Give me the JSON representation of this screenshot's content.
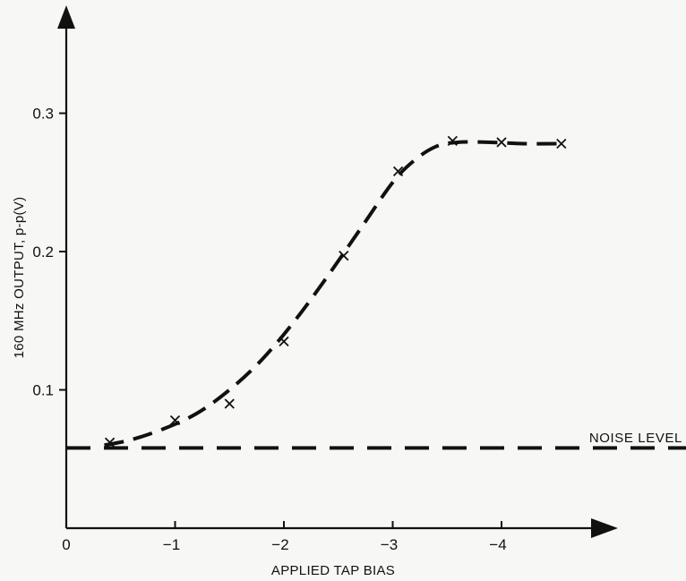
{
  "chart_data": {
    "type": "line",
    "title": "",
    "xlabel": "APPLIED TAP BIAS",
    "ylabel": "160 MHz OUTPUT, p-p(V)",
    "x_ticks": [
      {
        "value": 0,
        "label": "0"
      },
      {
        "value": -1,
        "label": "−1"
      },
      {
        "value": -2,
        "label": "−2"
      },
      {
        "value": -3,
        "label": "−3"
      },
      {
        "value": -4,
        "label": "−4"
      }
    ],
    "y_ticks": [
      {
        "value": 0.1,
        "label": "0.1"
      },
      {
        "value": 0.2,
        "label": "0.2"
      },
      {
        "value": 0.3,
        "label": "0.3"
      }
    ],
    "xlim": [
      0,
      -5.0
    ],
    "ylim": [
      0,
      0.36
    ],
    "grid": false,
    "series": [
      {
        "style": "markers-x",
        "x": [
          -0.4,
          -1.0,
          -1.5,
          -2.0,
          -2.55,
          -3.05,
          -3.55,
          -4.0,
          -4.55
        ],
        "y": [
          0.062,
          0.078,
          0.09,
          0.135,
          0.197,
          0.258,
          0.28,
          0.279,
          0.278
        ]
      },
      {
        "style": "dashed-curve",
        "x": [
          -0.35,
          -0.6,
          -0.9,
          -1.2,
          -1.5,
          -1.8,
          -2.1,
          -2.4,
          -2.7,
          -3.0,
          -3.2,
          -3.4,
          -3.6,
          -3.9,
          -4.2,
          -4.55
        ],
        "y": [
          0.06,
          0.064,
          0.072,
          0.083,
          0.1,
          0.122,
          0.15,
          0.182,
          0.216,
          0.25,
          0.266,
          0.276,
          0.279,
          0.279,
          0.278,
          0.278
        ]
      }
    ],
    "reference_line": {
      "label": "NOISE LEVEL",
      "y": 0.058,
      "x_range": [
        0,
        -5.7
      ],
      "style": "dashed"
    }
  }
}
